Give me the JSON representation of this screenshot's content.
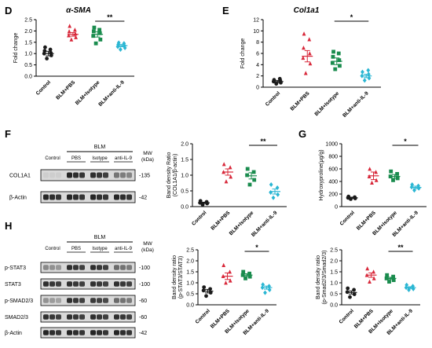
{
  "panel_letters": [
    "D",
    "E",
    "F",
    "G",
    "H"
  ],
  "chart_data": [
    {
      "id": "D",
      "type": "scatter",
      "title": "α-SMA",
      "xlabel": "",
      "ylabel": "Fold change",
      "categories": [
        "Control",
        "BLM+PBS",
        "BLM+Isotype",
        "BLM+anti-IL-9"
      ],
      "ylim": [
        0,
        2.5
      ],
      "yticks": [
        "0.0",
        "0.5",
        "1.0",
        "1.5",
        "2.0",
        "2.5"
      ],
      "points": [
        [
          0.78,
          0.92,
          1.0,
          1.03,
          1.12,
          1.18,
          1.28
        ],
        [
          1.62,
          1.72,
          1.8,
          1.88,
          1.98,
          2.05,
          2.22
        ],
        [
          1.45,
          1.62,
          1.78,
          1.9,
          1.98,
          2.05,
          2.15
        ],
        [
          1.18,
          1.25,
          1.3,
          1.35,
          1.4,
          1.45,
          1.48
        ]
      ],
      "means": [
        1.0,
        1.85,
        1.85,
        1.35
      ],
      "sem": [
        0.1,
        0.08,
        0.12,
        0.05
      ],
      "significance": [
        {
          "from": 2,
          "to": 3,
          "label": "**"
        }
      ]
    },
    {
      "id": "E",
      "type": "scatter",
      "title": "Col1a1",
      "xlabel": "",
      "ylabel": "Fold change",
      "categories": [
        "Control",
        "BLM+PBS",
        "BLM+Isotype",
        "BLM+anti-IL-9"
      ],
      "ylim": [
        0,
        12
      ],
      "yticks": [
        "0",
        "2",
        "4",
        "6",
        "8",
        "10",
        "12"
      ],
      "points": [
        [
          0.6,
          0.8,
          1.0,
          1.2,
          1.3,
          1.5
        ],
        [
          2.5,
          4.2,
          5.2,
          6.0,
          7.0,
          8.5,
          9.5
        ],
        [
          3.2,
          3.8,
          4.3,
          4.8,
          5.4,
          6.0,
          6.3
        ],
        [
          1.2,
          1.6,
          2.0,
          2.3,
          2.7,
          3.0
        ]
      ],
      "means": [
        1.0,
        5.5,
        4.6,
        2.0
      ],
      "sem": [
        0.2,
        1.0,
        0.6,
        0.3
      ],
      "significance": [
        {
          "from": 2,
          "to": 3,
          "label": "*"
        }
      ]
    },
    {
      "id": "F",
      "type": "scatter",
      "title": "",
      "xlabel": "",
      "ylabel": "Band density Ratio (COL1A1/β-actin)",
      "categories": [
        "Control",
        "BLM+PBS",
        "BLM+Isotype",
        "BLM+anti-IL-9"
      ],
      "ylim": [
        0,
        2.0
      ],
      "yticks": [
        "0.0",
        "0.5",
        "1.0",
        "1.5",
        "2.0"
      ],
      "points": [
        [
          0.06,
          0.1,
          0.12,
          0.15,
          0.18
        ],
        [
          0.8,
          0.95,
          1.1,
          1.25,
          1.35
        ],
        [
          0.7,
          0.85,
          1.0,
          1.1,
          1.2
        ],
        [
          0.28,
          0.38,
          0.45,
          0.6,
          0.7
        ]
      ],
      "means": [
        0.12,
        1.1,
        0.98,
        0.48
      ],
      "sem": [
        0.02,
        0.1,
        0.1,
        0.08
      ],
      "significance": [
        {
          "from": 2,
          "to": 3,
          "label": "**"
        }
      ]
    },
    {
      "id": "G",
      "type": "scatter",
      "title": "",
      "xlabel": "",
      "ylabel": "Hydroxyproline(μg/g)",
      "categories": [
        "Control",
        "BLM+PBS",
        "BLM+Isotype",
        "BLM+anti-IL-9"
      ],
      "ylim": [
        0,
        1000
      ],
      "yticks": [
        "0",
        "200",
        "400",
        "600",
        "800",
        "1000"
      ],
      "points": [
        [
          120,
          130,
          140,
          150,
          160
        ],
        [
          380,
          420,
          480,
          550,
          600
        ],
        [
          420,
          450,
          480,
          520,
          560
        ],
        [
          260,
          290,
          310,
          330,
          350
        ]
      ],
      "means": [
        140,
        490,
        480,
        305
      ],
      "sem": [
        10,
        60,
        30,
        20
      ],
      "significance": [
        {
          "from": 2,
          "to": 3,
          "label": "*"
        }
      ]
    },
    {
      "id": "H1",
      "type": "scatter",
      "title": "",
      "xlabel": "",
      "ylabel": "Band density ratio (p-STAT3/STAT3)",
      "categories": [
        "Control",
        "BLM+PBS",
        "BLM+Isotype",
        "BLM+anti-IL-9"
      ],
      "ylim": [
        0,
        2.5
      ],
      "yticks": [
        "0.0",
        "0.5",
        "1.0",
        "1.5",
        "2.0",
        "2.5"
      ],
      "points": [
        [
          0.4,
          0.55,
          0.65,
          0.72,
          0.8
        ],
        [
          1.0,
          1.1,
          1.3,
          1.5,
          1.8
        ],
        [
          1.2,
          1.28,
          1.35,
          1.42,
          1.5
        ],
        [
          0.55,
          0.68,
          0.78,
          0.85,
          0.92
        ]
      ],
      "means": [
        0.62,
        1.3,
        1.35,
        0.78
      ],
      "sem": [
        0.08,
        0.15,
        0.06,
        0.07
      ],
      "significance": [
        {
          "from": 2,
          "to": 3,
          "label": "*"
        }
      ]
    },
    {
      "id": "H2",
      "type": "scatter",
      "title": "",
      "xlabel": "",
      "ylabel": "Band density ratio (p-Smad2/3/Smad2/3)",
      "categories": [
        "Control",
        "BLM+PBS",
        "BLM+Isotype",
        "BLM+anti-IL-9"
      ],
      "ylim": [
        0,
        2.5
      ],
      "yticks": [
        "0.0",
        "0.5",
        "1.0",
        "1.5",
        "2.0",
        "2.5"
      ],
      "points": [
        [
          0.35,
          0.48,
          0.58,
          0.68,
          0.75
        ],
        [
          1.05,
          1.2,
          1.35,
          1.5,
          1.65
        ],
        [
          1.05,
          1.12,
          1.2,
          1.28,
          1.35
        ],
        [
          0.68,
          0.72,
          0.78,
          0.85,
          0.9
        ]
      ],
      "means": [
        0.56,
        1.35,
        1.2,
        0.78
      ],
      "sem": [
        0.07,
        0.1,
        0.05,
        0.04
      ],
      "significance": [
        {
          "from": 2,
          "to": 3,
          "label": "**"
        }
      ]
    }
  ],
  "series_colors": [
    "#1a1a1a",
    "#d8283a",
    "#1a8c4e",
    "#2ab6d3"
  ],
  "blots": {
    "F": {
      "header_group": "BLM",
      "lanes": [
        "Control",
        "PBS",
        "Isotype",
        "anti-IL-9"
      ],
      "mw_header": "MW (kDa)",
      "rows": [
        {
          "label": "COL1A1",
          "mw": "-135",
          "intensity": [
            0.05,
            0.9,
            0.85,
            0.5
          ]
        },
        {
          "label": "β-Actin",
          "mw": "-42",
          "intensity": [
            0.9,
            0.9,
            0.9,
            0.9
          ]
        }
      ]
    },
    "H": {
      "header_group": "BLM",
      "lanes": [
        "Control",
        "PBS",
        "Isotype",
        "anti-IL-9"
      ],
      "mw_header": "MW (kDa)",
      "rows": [
        {
          "label": "p-STAT3",
          "mw": "-100",
          "intensity": [
            0.4,
            0.85,
            0.85,
            0.55
          ]
        },
        {
          "label": "STAT3",
          "mw": "-100",
          "intensity": [
            0.85,
            0.85,
            0.85,
            0.85
          ]
        },
        {
          "label": "p-SMAD2/3",
          "mw": "-60",
          "intensity": [
            0.35,
            0.85,
            0.8,
            0.55
          ]
        },
        {
          "label": "SMAD2/3",
          "mw": "-60",
          "intensity": [
            0.85,
            0.85,
            0.85,
            0.85
          ]
        },
        {
          "label": "β-Actin",
          "mw": "-42",
          "intensity": [
            0.9,
            0.9,
            0.9,
            0.9
          ]
        }
      ]
    }
  }
}
